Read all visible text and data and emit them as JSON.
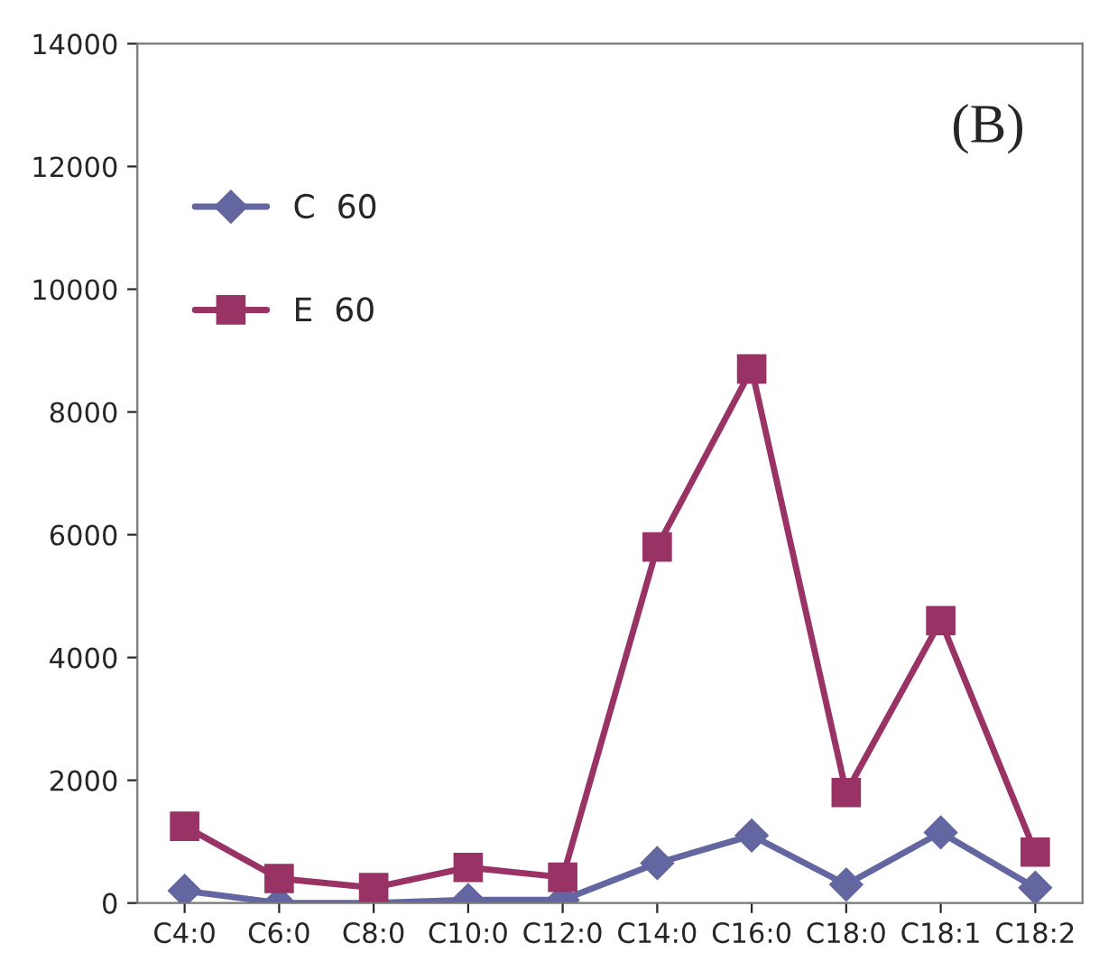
{
  "chart_data": {
    "type": "line",
    "categories": [
      "C4:0",
      "C6:0",
      "C8:0",
      "C10:0",
      "C12:0",
      "C14:0",
      "C16:0",
      "C18:0",
      "C18:1",
      "C18:2"
    ],
    "series": [
      {
        "name": "C  60",
        "color": "#6366a0",
        "marker": "diamond",
        "values": [
          200,
          0,
          0,
          50,
          50,
          650,
          1100,
          300,
          1150,
          250
        ]
      },
      {
        "name": "E  60",
        "color": "#993366",
        "marker": "square",
        "values": [
          1250,
          400,
          250,
          580,
          420,
          5800,
          8700,
          1800,
          4600,
          830
        ]
      }
    ],
    "ylim": [
      0,
      14000
    ],
    "yticks": [
      0,
      2000,
      4000,
      6000,
      8000,
      10000,
      12000,
      14000
    ],
    "grid": false,
    "legend": "top left",
    "annotations": [
      "(B)"
    ]
  }
}
